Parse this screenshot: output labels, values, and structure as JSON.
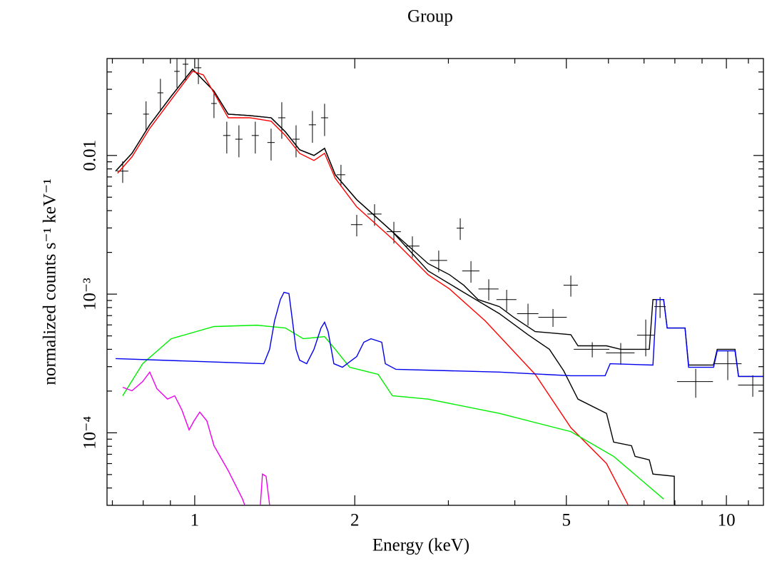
{
  "chart_data": {
    "type": "line",
    "title": "Group",
    "x_label": "Energy (keV)",
    "y_label": "normalized counts s⁻¹ keV⁻¹",
    "xscale": "log",
    "yscale": "log",
    "xlim": [
      0.684,
      11.74
    ],
    "ylim": [
      3e-05,
      0.05
    ],
    "xticks": [
      1,
      2,
      5,
      10
    ],
    "yticks": [
      {
        "value": 0.0001,
        "label": "10⁻⁴"
      },
      {
        "value": 0.001,
        "label": "10⁻³"
      },
      0.01
    ],
    "xminorticks": [
      0.7,
      0.8,
      0.9,
      3,
      4,
      6,
      7,
      8,
      9,
      11
    ],
    "yminorticks": [
      4e-05,
      5e-05,
      6e-05,
      7e-05,
      8e-05,
      9e-05,
      0.0002,
      0.0003,
      0.0004,
      0.0005,
      0.0006,
      0.0007,
      0.0008,
      0.0009,
      0.002,
      0.003,
      0.004,
      0.005,
      0.006,
      0.007,
      0.008,
      0.009,
      0.02,
      0.03,
      0.04
    ],
    "series": [
      {
        "style": "errorbar",
        "color": "#000000",
        "x": [
          0.732,
          0.81,
          0.862,
          0.926,
          0.961,
          1.016,
          1.087,
          1.149,
          1.211,
          1.3,
          1.392,
          1.458,
          1.551,
          1.665,
          1.755,
          1.884,
          2.017,
          2.179,
          2.369,
          2.567,
          2.877,
          3.158,
          3.308,
          3.573,
          3.861,
          4.235,
          4.719,
          5.098,
          5.594,
          6.328,
          7.052,
          7.503,
          8.756,
          10.06,
          11.21
        ],
        "values": [
          0.00771,
          0.01986,
          0.0283,
          0.0404,
          0.0455,
          0.0429,
          0.0237,
          0.01393,
          0.0131,
          0.01393,
          0.0124,
          0.0187,
          0.0131,
          0.01664,
          0.0187,
          0.00726,
          0.00317,
          0.00378,
          0.00282,
          0.00222,
          0.00175,
          0.00299,
          0.00147,
          0.00109,
          0.000914,
          0.000723,
          0.000681,
          0.00116,
          0.0004,
          0.000377,
          0.000506,
          0.000813,
          0.000234,
          0.000315,
          0.000221
        ],
        "xerr": [
          0.018,
          0.01,
          0.011,
          0.011,
          0.012,
          0.013,
          0.013,
          0.018,
          0.019,
          0.02,
          0.022,
          0.023,
          0.024,
          0.026,
          0.027,
          0.035,
          0.05,
          0.067,
          0.073,
          0.079,
          0.107,
          0.049,
          0.123,
          0.155,
          0.167,
          0.196,
          0.29,
          0.158,
          0.43,
          0.39,
          0.26,
          0.185,
          0.68,
          0.62,
          0.69
        ],
        "yerr": [
          0.00137,
          0.0047,
          0.0074,
          0.0096,
          0.0108,
          0.0102,
          0.0051,
          0.0036,
          0.0034,
          0.0036,
          0.0032,
          0.0055,
          0.0034,
          0.0043,
          0.0049,
          0.0013,
          0.00056,
          0.00067,
          0.0005,
          0.00039,
          0.00031,
          0.00053,
          0.00026,
          0.00019,
          0.00016,
          0.00013,
          0.0001,
          0.0002,
          5e-05,
          6.7e-05,
          0.00015,
          0.00014,
          5.5e-05,
          7.5e-05,
          3.9e-05
        ]
      },
      {
        "style": "line",
        "color": "#000000",
        "x": [
          0.71,
          0.762,
          0.823,
          0.903,
          0.991,
          1.087,
          1.156,
          1.269,
          1.392,
          1.481,
          1.575,
          1.676,
          1.755,
          1.838,
          2.017,
          2.354,
          2.748,
          3.015,
          3.206,
          3.412,
          3.742,
          3.981,
          4.369,
          5.098,
          5.258,
          5.95,
          6.328,
          7.161,
          7.275,
          7.62,
          7.738,
          8.36,
          8.49,
          9.46,
          9.61,
          10.38,
          10.54,
          11.74
        ],
        "values": [
          0.00771,
          0.01036,
          0.01664,
          0.0267,
          0.0419,
          0.0291,
          0.01986,
          0.0194,
          0.0187,
          0.01479,
          0.011,
          0.01,
          0.01125,
          0.00726,
          0.0048,
          0.00282,
          0.00166,
          0.00138,
          0.00116,
          0.000914,
          0.000813,
          0.000681,
          0.000537,
          0.00051,
          0.000424,
          0.000424,
          0.0004,
          0.0004,
          0.000914,
          0.000914,
          0.00057,
          0.00057,
          0.000308,
          0.000308,
          0.0004,
          0.0004,
          0.000255,
          0.000255
        ]
      },
      {
        "style": "line",
        "color": "#000000",
        "x": [
          0.71,
          0.762,
          0.823,
          0.903,
          0.991,
          1.087,
          1.156,
          1.269,
          1.392,
          1.481,
          1.575,
          1.676,
          1.755,
          1.838,
          2.017,
          2.354,
          2.748,
          3.206,
          3.742,
          4.235,
          4.647,
          4.943,
          5.098,
          5.258,
          5.95,
          6.137,
          6.63,
          6.734,
          7.161,
          7.275,
          7.98,
          7.98
        ],
        "values": [
          0.00771,
          0.01036,
          0.01664,
          0.0267,
          0.0419,
          0.0291,
          0.01986,
          0.0194,
          0.0187,
          0.01479,
          0.011,
          0.01,
          0.01125,
          0.00726,
          0.0048,
          0.00282,
          0.00147,
          0.00103,
          0.000723,
          0.00051,
          0.0004,
          0.00028,
          0.000221,
          0.000175,
          0.000138,
          8.57e-05,
          8.07e-05,
          6.76e-05,
          6.38e-05,
          5.04e-05,
          4.86e-05,
          3.03e-05
        ]
      },
      {
        "style": "line",
        "color": "#ff0000",
        "x": [
          0.716,
          0.762,
          0.823,
          0.903,
          0.991,
          1.038,
          1.087,
          1.156,
          1.269,
          1.392,
          1.481,
          1.575,
          1.676,
          1.755,
          1.838,
          2.017,
          2.354,
          2.748,
          3.015,
          3.518,
          4.369,
          5.098,
          5.95,
          6.53
        ],
        "values": [
          0.00744,
          0.00977,
          0.01567,
          0.0252,
          0.0404,
          0.0381,
          0.0283,
          0.0187,
          0.0187,
          0.01766,
          0.01393,
          0.01036,
          0.0092,
          0.01036,
          0.00685,
          0.00426,
          0.0025,
          0.00138,
          0.00109,
          0.000642,
          0.000264,
          0.000109,
          6.01e-05,
          3.03e-05
        ]
      },
      {
        "style": "line",
        "color": "#00ee00",
        "x": [
          0.732,
          0.798,
          0.903,
          1.087,
          1.309,
          1.481,
          1.6,
          1.755,
          1.838,
          1.956,
          2.213,
          2.354,
          2.748,
          3.742,
          5.098,
          6.137,
          7.62
        ],
        "values": [
          0.000185,
          0.000315,
          0.000477,
          0.000584,
          0.000597,
          0.00057,
          0.000477,
          0.000494,
          0.0004,
          0.000297,
          0.000264,
          0.000185,
          0.000175,
          0.000138,
          0.000102,
          6.76e-05,
          3.33e-05
        ]
      },
      {
        "style": "line",
        "color": "#0000ee",
        "x": [
          0.71,
          1.349,
          1.383,
          1.413,
          1.449,
          1.472,
          1.504,
          1.527,
          1.551,
          1.575,
          1.624,
          1.676,
          1.728,
          1.755,
          1.782,
          1.827,
          1.896,
          2.017,
          2.08,
          2.146,
          2.248,
          2.283,
          2.39,
          3.742,
          5.098,
          5.914,
          6.044,
          7.275,
          7.389,
          7.62,
          7.738,
          8.36,
          8.49,
          9.46,
          9.61,
          10.38,
          10.54,
          11.74
        ],
        "values": [
          0.000343,
          0.000315,
          0.0004,
          0.000642,
          0.000914,
          0.00103,
          0.00101,
          0.000642,
          0.0004,
          0.000334,
          0.000315,
          0.0004,
          0.00057,
          0.000627,
          0.000537,
          0.000315,
          0.000297,
          0.000355,
          0.00045,
          0.000477,
          0.00045,
          0.000315,
          0.000287,
          0.000274,
          0.000258,
          0.000258,
          0.000315,
          0.000308,
          0.000914,
          0.000914,
          0.00057,
          0.00057,
          0.000297,
          0.000297,
          0.00039,
          0.00039,
          0.000255,
          0.000255
        ]
      },
      {
        "style": "line",
        "color": "#ee00ee",
        "x": [
          0.732,
          0.762,
          0.798,
          0.823,
          0.849,
          0.889,
          0.917,
          0.946,
          0.976,
          0.997,
          1.022,
          1.054,
          1.087,
          1.156,
          1.23,
          1.241,
          1.29,
          1.329,
          1.341,
          1.362,
          1.383
        ],
        "values": [
          0.000213,
          0.000201,
          0.000234,
          0.000274,
          0.000208,
          0.000175,
          0.000185,
          0.000146,
          0.000105,
          0.000122,
          0.000141,
          0.000122,
          8.07e-05,
          5.34e-05,
          3.33e-05,
          3.03e-05,
          null,
          3.03e-05,
          5.04e-05,
          4.86e-05,
          3.03e-05
        ]
      }
    ]
  }
}
